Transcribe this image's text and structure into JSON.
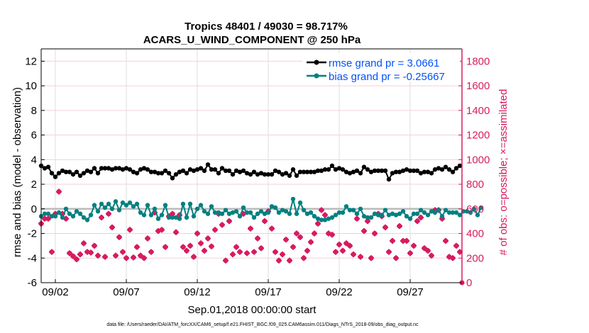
{
  "chart_data": {
    "type": "line",
    "title": "Tropics 48401 / 49030 = 98.717%",
    "subtitle": "ACARS_U_WIND_COMPONENT @ 250 hPa",
    "xlabel": "Sep.01,2018 00:00:00 start",
    "ylabel": "rmse and bias (model - observation)",
    "y2label": "# of obs: o=possible; ×=assimilated",
    "footer": "data file: /Users/raeder/DAI/ATM_forcXX/CAM6_setup/f.e21.FHIST_BGC.f09_025.CAM6assim.011/Diags_NTrS_2018-09/obs_diag_output.nc",
    "xlim_days": [
      0,
      29.65
    ],
    "x_step_days": 0.25,
    "x_tick_days": [
      1,
      6,
      11,
      16,
      21,
      26
    ],
    "x_tick_labels": [
      "09/02",
      "09/07",
      "09/12",
      "09/17",
      "09/22",
      "09/27"
    ],
    "ylim": [
      -6,
      13
    ],
    "y_ticks": [
      -6,
      -4,
      -2,
      0,
      2,
      4,
      6,
      8,
      10,
      12
    ],
    "y2lim": [
      0,
      1900
    ],
    "y2_ticks": [
      0,
      200,
      400,
      600,
      800,
      1000,
      1200,
      1400,
      1600,
      1800
    ],
    "legend_placement": "top-right",
    "grid": true,
    "colors": {
      "rmse": "#000000",
      "bias": "#008080",
      "obs": "#d81b60",
      "legend_text": "#0050ff",
      "zero_line": "#bbbbbb"
    },
    "series": [
      {
        "name": "rmse grand pr = 3.0661",
        "key": "rmse",
        "axis": "left",
        "values": [
          3.5,
          3.3,
          3.4,
          2.9,
          2.6,
          2.9,
          3.1,
          3.0,
          3.0,
          2.8,
          3.0,
          2.7,
          2.9,
          3.1,
          3.0,
          3.3,
          2.9,
          3.3,
          3.3,
          3.3,
          3.2,
          3.3,
          3.3,
          3.2,
          3.3,
          3.2,
          3.0,
          2.9,
          3.2,
          3.3,
          3.2,
          3.0,
          3.0,
          2.9,
          2.9,
          3.1,
          2.9,
          2.5,
          2.8,
          3.0,
          3.1,
          2.9,
          3.2,
          3.1,
          3.2,
          3.3,
          3.1,
          3.6,
          3.2,
          3.2,
          2.9,
          3.3,
          3.1,
          3.1,
          2.8,
          3.1,
          3.0,
          3.1,
          2.9,
          2.8,
          3.0,
          2.8,
          2.9,
          2.8,
          2.8,
          2.8,
          3.1,
          3.0,
          2.8,
          2.9,
          2.7,
          3.2,
          2.7,
          3.0,
          3.0,
          3.0,
          3.0,
          3.0,
          3.1,
          3.1,
          3.2,
          3.2,
          3.5,
          3.2,
          3.3,
          3.2,
          3.0,
          2.9,
          3.0,
          3.1,
          2.9,
          3.4,
          3.2,
          3.0,
          3.1,
          3.1,
          3.1,
          3.1,
          2.4,
          2.9,
          3.0,
          3.0,
          3.1,
          3.2,
          3.1,
          3.1,
          3.1,
          2.9,
          3.0,
          3.0,
          2.9,
          3.2,
          3.3,
          3.2,
          3.4,
          3.2,
          3.0,
          3.3,
          3.5
        ]
      },
      {
        "name": "bias grand pr = -0.25667",
        "key": "bias",
        "axis": "left",
        "values": [
          -0.6,
          -0.4,
          -0.4,
          -0.6,
          -0.6,
          -0.3,
          -0.7,
          0.0,
          -0.4,
          -0.6,
          -0.2,
          -0.4,
          -0.7,
          -0.9,
          -0.5,
          0.3,
          -0.2,
          0.4,
          0.1,
          0.4,
          0.0,
          0.6,
          -0.1,
          0.5,
          0.3,
          0.5,
          0.2,
          0.4,
          -0.3,
          -0.5,
          0.3,
          -0.5,
          0.0,
          -0.8,
          -0.5,
          0.3,
          -0.7,
          -0.7,
          -0.7,
          -0.8,
          0.4,
          -0.7,
          0.4,
          -0.6,
          0.0,
          0.3,
          -0.2,
          -0.4,
          0.2,
          -0.3,
          -0.3,
          -0.4,
          -0.1,
          -0.4,
          -0.3,
          -0.2,
          -0.6,
          0.1,
          -0.3,
          -0.3,
          -0.7,
          -0.4,
          -0.2,
          -0.4,
          -0.3,
          0.2,
          0.1,
          -0.3,
          -0.1,
          -0.2,
          -0.4,
          0.8,
          -0.4,
          0.5,
          -0.1,
          -0.4,
          -0.3,
          -0.6,
          -0.8,
          -0.9,
          -0.9,
          -0.8,
          -0.7,
          -0.5,
          -0.3,
          -0.3,
          0.2,
          -0.1,
          -0.1,
          -0.4,
          0.0,
          -0.6,
          -0.7,
          -0.7,
          -0.4,
          -0.5,
          -0.5,
          -0.1,
          -0.5,
          -0.4,
          -0.5,
          -0.4,
          -0.2,
          -0.6,
          -0.8,
          -0.4,
          -0.4,
          -0.1,
          -0.3,
          -0.5,
          -0.2,
          -0.3,
          -0.1,
          -0.6,
          -0.1,
          -0.3,
          -0.3,
          -0.3,
          -0.5,
          -0.2,
          -0.2,
          -0.3,
          0.0,
          -0.5,
          0.1
        ]
      },
      {
        "name": "# of obs",
        "key": "obs",
        "axis": "right",
        "values": [
          480,
          520,
          520,
          250,
          560,
          740,
          560,
          520,
          240,
          215,
          190,
          230,
          320,
          250,
          245,
          300,
          220,
          530,
          210,
          560,
          450,
          220,
          370,
          250,
          200,
          430,
          205,
          290,
          220,
          200,
          360,
          250,
          570,
          420,
          430,
          290,
          540,
          560,
          410,
          550,
          290,
          260,
          300,
          210,
          400,
          320,
          260,
          360,
          295,
          430,
          560,
          470,
          180,
          500,
          230,
          290,
          250,
          560,
          240,
          440,
          250,
          360,
          280,
          500,
          580,
          440,
          250,
          180,
          230,
          350,
          180,
          290,
          400,
          370,
          200,
          260,
          330,
          400,
          480,
          590,
          550,
          400,
          390,
          250,
          310,
          260,
          320,
          300,
          230,
          520,
          210,
          420,
          500,
          200,
          400,
          560,
          540,
          450,
          250,
          340,
          200,
          460,
          340,
          340,
          240,
          300,
          500,
          530,
          280,
          260,
          220,
          590,
          590,
          520,
          340,
          210,
          200,
          300,
          250
        ]
      },
      {
        "name": "obs edge",
        "key": "obs_last",
        "axis": "right",
        "values": [
          0
        ]
      }
    ]
  }
}
